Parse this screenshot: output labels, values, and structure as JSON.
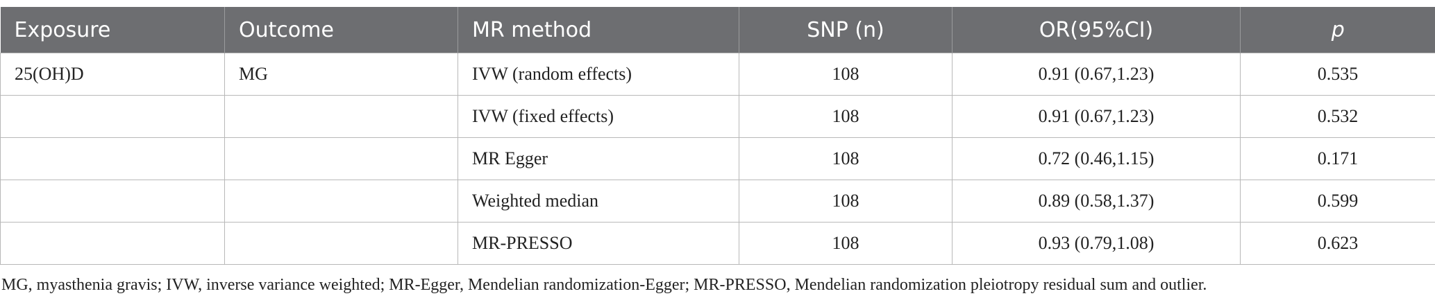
{
  "table": {
    "header": [
      "Exposure",
      "Outcome",
      "MR method",
      "SNP (n)",
      "OR(95%CI)",
      "p"
    ],
    "rows": [
      {
        "exposure": "25(OH)D",
        "outcome": "MG",
        "method": "IVW (random effects)",
        "snp": "108",
        "or": "0.91 (0.67,1.23)",
        "p": "0.535"
      },
      {
        "method": "IVW (fixed effects)",
        "snp": "108",
        "or": "0.91 (0.67,1.23)",
        "p": "0.532"
      },
      {
        "method": "MR Egger",
        "snp": "108",
        "or": "0.72 (0.46,1.15)",
        "p": "0.171"
      },
      {
        "method": "Weighted median",
        "snp": "108",
        "or": "0.89 (0.58,1.37)",
        "p": "0.599"
      },
      {
        "method": "MR-PRESSO",
        "snp": "108",
        "or": "0.93 (0.79,1.08)",
        "p": "0.623"
      }
    ]
  },
  "footnote": "MG, myasthenia gravis; IVW, inverse variance weighted; MR-Egger, Mendelian randomization-Egger; MR-PRESSO, Mendelian randomization pleiotropy residual sum and outlier."
}
